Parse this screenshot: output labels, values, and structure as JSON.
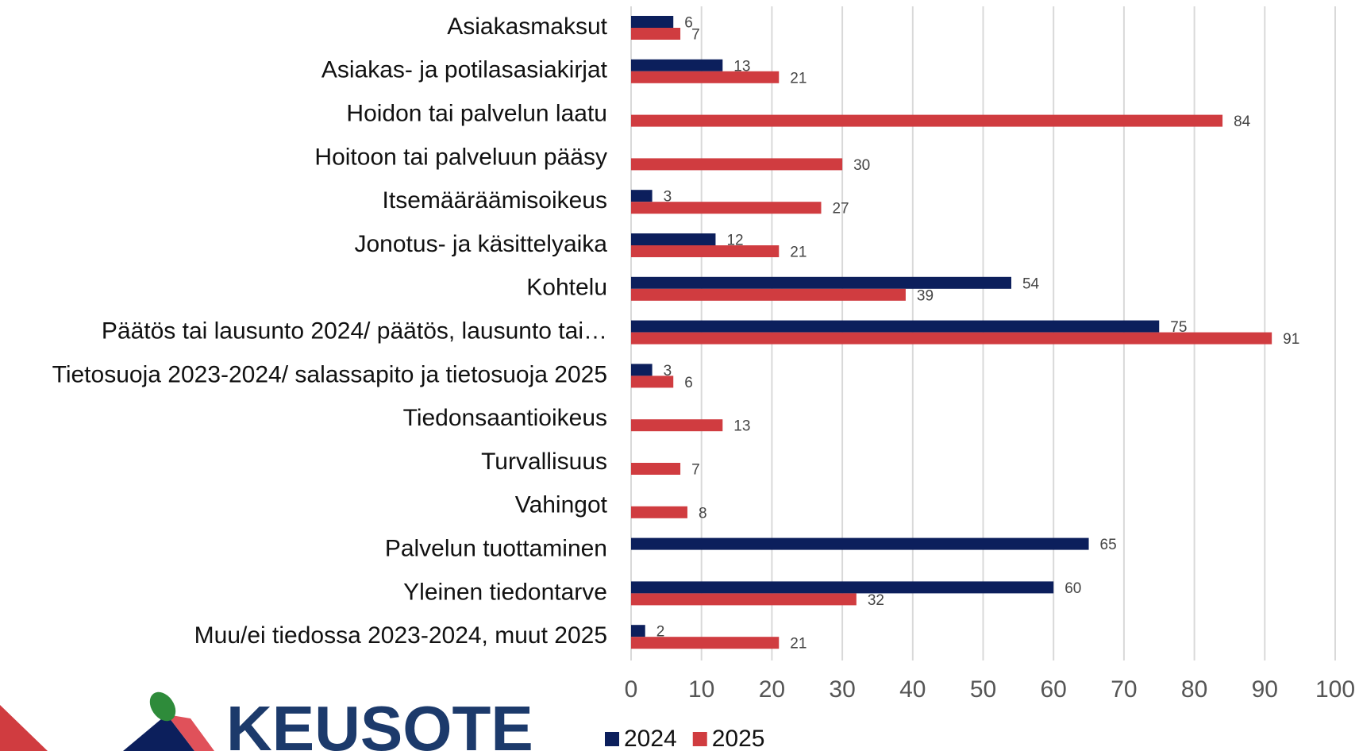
{
  "chart_data": {
    "type": "hbar",
    "categories": [
      "Asiakasmaksut",
      "Asiakas- ja potilasasiakirjat",
      "Hoidon tai palvelun laatu",
      "Hoitoon tai palveluun pääsy",
      "Itsemääräämisoikeus",
      "Jonotus- ja käsittelyaika",
      "Kohtelu",
      "Päätös tai lausunto 2024/ päätös, lausunto tai…",
      "Tietosuoja 2023-2024/ salassapito ja tietosuoja 2025",
      "Tiedonsaantioikeus",
      "Turvallisuus",
      "Vahingot",
      "Palvelun tuottaminen",
      "Yleinen tiedontarve",
      "Muu/ei tiedossa 2023-2024, muut 2025"
    ],
    "series": [
      {
        "name": "2024",
        "color": "#0c1f5c",
        "values": [
          6,
          13,
          null,
          null,
          3,
          12,
          54,
          75,
          3,
          null,
          null,
          null,
          65,
          60,
          2
        ]
      },
      {
        "name": "2025",
        "color": "#d03c40",
        "values": [
          7,
          21,
          84,
          30,
          27,
          21,
          39,
          91,
          6,
          13,
          7,
          8,
          null,
          32,
          21
        ]
      }
    ],
    "xlim": [
      0,
      100
    ],
    "xticks": [
      0,
      10,
      20,
      30,
      40,
      50,
      60,
      70,
      80,
      90,
      100
    ],
    "grid": true,
    "legend": "bottom"
  },
  "logo": {
    "text": "KEUSOTE"
  }
}
